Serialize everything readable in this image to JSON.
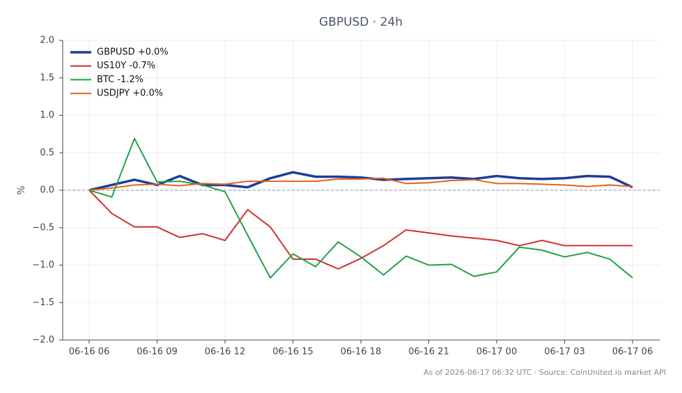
{
  "chart_data": {
    "type": "line",
    "title": "GBPUSD · 24h",
    "y_label": "%",
    "footnote": "As of 2026-06-17 06:32 UTC · Source: CoinUnited.io market API",
    "categories": [
      "06-16 06",
      null,
      null,
      "06-16 09",
      null,
      null,
      "06-16 12",
      null,
      null,
      "06-16 15",
      null,
      null,
      "06-16 18",
      null,
      null,
      "06-16 21",
      null,
      null,
      "06-17 00",
      null,
      null,
      "06-17 03",
      null,
      null,
      "06-17 06"
    ],
    "series": [
      {
        "name": "GBPUSD +0.0%",
        "color": "#1f3c99",
        "line_width": 3.5,
        "values": [
          0,
          0.07,
          0.14,
          0.07,
          0.19,
          0.07,
          0.07,
          0.04,
          0.16,
          0.24,
          0.18,
          0.18,
          0.17,
          0.14,
          0.15,
          0.16,
          0.17,
          0.15,
          0.19,
          0.16,
          0.15,
          0.16,
          0.19,
          0.18,
          0.04
        ]
      },
      {
        "name": "US10Y -0.7%",
        "color": "#d03030",
        "line_width": 2,
        "values": [
          0,
          -0.31,
          -0.49,
          -0.49,
          -0.63,
          -0.58,
          -0.67,
          -0.26,
          -0.49,
          -0.92,
          -0.92,
          -1.05,
          -0.91,
          -0.74,
          -0.53,
          -0.57,
          -0.61,
          -0.64,
          -0.67,
          -0.74,
          -0.67,
          -0.74,
          -0.74,
          -0.74,
          -0.74
        ]
      },
      {
        "name": "BTC -1.2%",
        "color": "#22a045",
        "line_width": 2,
        "values": [
          0,
          -0.09,
          0.69,
          0.11,
          0.12,
          0.07,
          -0.02,
          -0.6,
          -1.17,
          -0.85,
          -1.02,
          -0.69,
          -0.89,
          -1.13,
          -0.88,
          -1.0,
          -0.99,
          -1.15,
          -1.09,
          -0.76,
          -0.8,
          -0.89,
          -0.83,
          -0.92,
          -1.17
        ]
      },
      {
        "name": "USDJPY +0.0%",
        "color": "#e8601c",
        "line_width": 2,
        "values": [
          0,
          0.03,
          0.07,
          0.08,
          0.06,
          0.09,
          0.08,
          0.12,
          0.12,
          0.12,
          0.12,
          0.15,
          0.15,
          0.16,
          0.09,
          0.1,
          0.13,
          0.14,
          0.09,
          0.09,
          0.08,
          0.07,
          0.05,
          0.07,
          0.05
        ]
      }
    ],
    "ylim": [
      -2,
      2
    ],
    "yticks": [
      {
        "value": -2,
        "label": "−2.0"
      },
      {
        "value": -1.5,
        "label": "−1.5"
      },
      {
        "value": -1,
        "label": "−1.0"
      },
      {
        "value": -0.5,
        "label": "−0.5"
      },
      {
        "value": 0,
        "label": "0.0"
      },
      {
        "value": 0.5,
        "label": "0.5"
      },
      {
        "value": 1,
        "label": "1.0"
      },
      {
        "value": 1.5,
        "label": "1.5"
      },
      {
        "value": 2,
        "label": "2.0"
      }
    ],
    "hline": 0,
    "grid": true,
    "legend": "upper-left"
  }
}
